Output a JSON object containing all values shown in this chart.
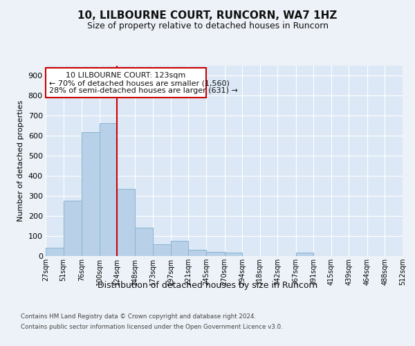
{
  "title1": "10, LILBOURNE COURT, RUNCORN, WA7 1HZ",
  "title2": "Size of property relative to detached houses in Runcorn",
  "xlabel": "Distribution of detached houses by size in Runcorn",
  "ylabel": "Number of detached properties",
  "bar_color": "#b8d0e8",
  "bar_edge_color": "#8ab4d4",
  "vline_color": "#cc0000",
  "vline_x": 124,
  "annotation_line1": "10 LILBOURNE COURT: 123sqm",
  "annotation_line2": "← 70% of detached houses are smaller (1,560)",
  "annotation_line3": "28% of semi-detached houses are larger (631) →",
  "footer1": "Contains HM Land Registry data © Crown copyright and database right 2024.",
  "footer2": "Contains public sector information licensed under the Open Government Licence v3.0.",
  "bin_edges": [
    27,
    51,
    76,
    100,
    124,
    148,
    173,
    197,
    221,
    245,
    270,
    294,
    318,
    342,
    367,
    391,
    415,
    439,
    464,
    488,
    512
  ],
  "counts": [
    40,
    275,
    620,
    665,
    335,
    140,
    60,
    75,
    30,
    20,
    18,
    0,
    0,
    0,
    18,
    0,
    0,
    0,
    0,
    0
  ],
  "ylim": [
    0,
    950
  ],
  "yticks": [
    0,
    100,
    200,
    300,
    400,
    500,
    600,
    700,
    800,
    900
  ],
  "fig_bg": "#edf2f8",
  "plot_bg": "#dce8f5",
  "grid_color": "#ffffff"
}
